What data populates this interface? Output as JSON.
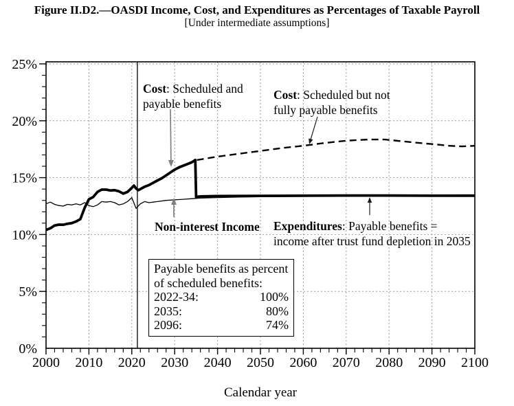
{
  "figure": {
    "title": "Figure II.D2.—OASDI Income, Cost, and Expenditures as Percentages of Taxable Payroll",
    "subtitle": "[Under intermediate assumptions]"
  },
  "chart_data": {
    "type": "line",
    "title": "OASDI Income, Cost, and Expenditures as Percentages of Taxable Payroll",
    "xlabel": "Calendar year",
    "ylabel": "",
    "xlim": [
      2000,
      2100
    ],
    "ylim": [
      0,
      25
    ],
    "xticks": [
      2000,
      2010,
      2020,
      2030,
      2040,
      2050,
      2060,
      2070,
      2080,
      2090,
      2100
    ],
    "x_minor_step": 2,
    "yticks": [
      0,
      5,
      10,
      15,
      20,
      25
    ],
    "ytick_labels": [
      "0%",
      "5%",
      "10%",
      "15%",
      "20%",
      "25%"
    ],
    "y_minor_step": 1,
    "grid": "dotted gray at major ticks",
    "historical_boundary_year": 2021.3,
    "series": [
      {
        "name": "Non-interest Income",
        "style": "thin-solid",
        "points": [
          [
            2000,
            12.7
          ],
          [
            2001,
            12.85
          ],
          [
            2002,
            12.65
          ],
          [
            2003,
            12.55
          ],
          [
            2004,
            12.5
          ],
          [
            2005,
            12.65
          ],
          [
            2006,
            12.6
          ],
          [
            2007,
            12.7
          ],
          [
            2008,
            12.6
          ],
          [
            2009,
            12.8
          ],
          [
            2010,
            12.55
          ],
          [
            2011,
            12.45
          ],
          [
            2012,
            12.6
          ],
          [
            2013,
            12.9
          ],
          [
            2014,
            12.85
          ],
          [
            2015,
            12.9
          ],
          [
            2016,
            12.8
          ],
          [
            2017,
            12.6
          ],
          [
            2018,
            12.7
          ],
          [
            2019,
            12.9
          ],
          [
            2020,
            13.25
          ],
          [
            2021,
            12.3
          ],
          [
            2022,
            12.7
          ],
          [
            2023,
            12.9
          ],
          [
            2024,
            12.8
          ],
          [
            2025,
            12.85
          ],
          [
            2026,
            12.9
          ],
          [
            2028,
            13.0
          ],
          [
            2030,
            13.05
          ],
          [
            2032,
            13.1
          ],
          [
            2034,
            13.15
          ],
          [
            2036,
            13.2
          ],
          [
            2040,
            13.25
          ],
          [
            2045,
            13.3
          ],
          [
            2050,
            13.32
          ],
          [
            2055,
            13.34
          ],
          [
            2060,
            13.36
          ],
          [
            2065,
            13.38
          ],
          [
            2070,
            13.4
          ],
          [
            2080,
            13.41
          ],
          [
            2090,
            13.4
          ],
          [
            2100,
            13.41
          ]
        ]
      },
      {
        "name": "Cost: Scheduled but not fully payable benefits",
        "style": "dashed",
        "points": [
          [
            2035.2,
            16.55
          ],
          [
            2040,
            16.85
          ],
          [
            2045,
            17.1
          ],
          [
            2050,
            17.35
          ],
          [
            2055,
            17.6
          ],
          [
            2060,
            17.8
          ],
          [
            2065,
            18.05
          ],
          [
            2070,
            18.25
          ],
          [
            2075,
            18.35
          ],
          [
            2079,
            18.35
          ],
          [
            2083,
            18.2
          ],
          [
            2087,
            18.05
          ],
          [
            2090,
            17.95
          ],
          [
            2094,
            17.8
          ],
          [
            2097,
            17.75
          ],
          [
            2100,
            17.8
          ]
        ]
      },
      {
        "name": "Cost: Scheduled and payable benefits / Expenditures: Payable benefits",
        "style": "thick-solid",
        "points": [
          [
            2000,
            10.4
          ],
          [
            2001,
            10.55
          ],
          [
            2002,
            10.8
          ],
          [
            2003,
            10.87
          ],
          [
            2004,
            10.86
          ],
          [
            2005,
            10.95
          ],
          [
            2006,
            11.0
          ],
          [
            2007,
            11.15
          ],
          [
            2008,
            11.35
          ],
          [
            2009,
            12.35
          ],
          [
            2010,
            13.1
          ],
          [
            2011,
            13.3
          ],
          [
            2012,
            13.75
          ],
          [
            2013,
            13.95
          ],
          [
            2014,
            13.95
          ],
          [
            2015,
            13.87
          ],
          [
            2016,
            13.9
          ],
          [
            2017,
            13.8
          ],
          [
            2018,
            13.6
          ],
          [
            2019,
            13.75
          ],
          [
            2020,
            14.1
          ],
          [
            2020.5,
            14.3
          ],
          [
            2021,
            14.05
          ],
          [
            2021.5,
            13.9
          ],
          [
            2022,
            14.0
          ],
          [
            2023,
            14.2
          ],
          [
            2024,
            14.35
          ],
          [
            2025,
            14.55
          ],
          [
            2026,
            14.75
          ],
          [
            2027,
            14.95
          ],
          [
            2028,
            15.2
          ],
          [
            2029,
            15.45
          ],
          [
            2030,
            15.7
          ],
          [
            2031,
            15.9
          ],
          [
            2032,
            16.05
          ],
          [
            2033,
            16.2
          ],
          [
            2034,
            16.35
          ],
          [
            2034.8,
            16.55
          ],
          [
            2035,
            13.3
          ],
          [
            2036,
            13.35
          ],
          [
            2040,
            13.38
          ],
          [
            2050,
            13.4
          ],
          [
            2060,
            13.41
          ],
          [
            2070,
            13.43
          ],
          [
            2080,
            13.43
          ],
          [
            2090,
            13.41
          ],
          [
            2100,
            13.42
          ]
        ]
      }
    ]
  },
  "annotations": {
    "cost_payable": {
      "bold": "Cost",
      "rest": ": Scheduled and\npayable benefits"
    },
    "cost_scheduled": {
      "bold": "Cost",
      "rest": ": Scheduled but not\nfully payable benefits"
    },
    "non_interest": {
      "text": "Non-interest Income"
    },
    "expenditures": {
      "bold": "Expenditures",
      "rest": ": Payable benefits =\nincome after trust fund depletion in 2035"
    }
  },
  "inset": {
    "heading_line1": "Payable benefits as percent",
    "heading_line2": "of scheduled benefits:",
    "rows": [
      {
        "label": "2022-34:",
        "value": "100%"
      },
      {
        "label": "2035:",
        "value": "80%"
      },
      {
        "label": "2096:",
        "value": "74%"
      }
    ]
  },
  "colors": {
    "line": "#000000",
    "grid": "#999999",
    "gray_arrow": "#808080",
    "background": "#ffffff"
  }
}
